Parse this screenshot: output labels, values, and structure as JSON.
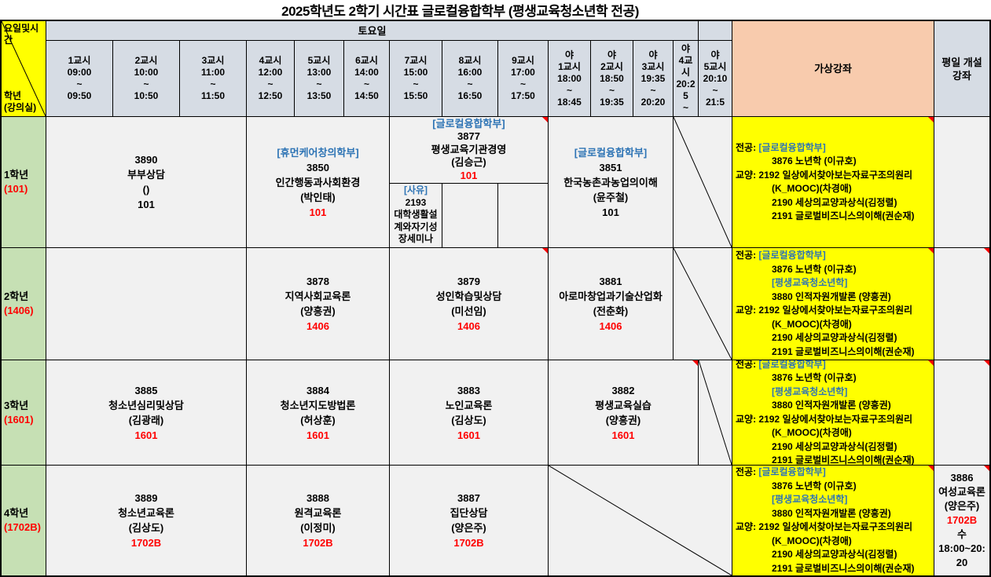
{
  "title": "2025학년도 2학기 시간표 글로컬융합학부 (평생교육청소년학 전공)",
  "colors": {
    "highlight_yellow": "#FFFF00",
    "header_fill": "#D6DCE4",
    "virtual_header_fill": "#F8CBAD",
    "grade_fill": "#C6E0B4",
    "dept_link_blue": "#2E74B5",
    "room_red": "#FF0000"
  },
  "corner": {
    "top_lines": [
      "요일및시간"
    ],
    "bottom_lines": [
      "학년",
      "(강의실)"
    ]
  },
  "header": {
    "day": "토요일",
    "virtual_title": "가상강좌",
    "weekday_title": "평일 개설 강좌",
    "periods": [
      {
        "lines": [
          "1교시",
          "09:00",
          "~",
          "09:50"
        ]
      },
      {
        "lines": [
          "2교시",
          "10:00",
          "~",
          "10:50"
        ]
      },
      {
        "lines": [
          "3교시",
          "11:00",
          "~",
          "11:50"
        ]
      },
      {
        "lines": [
          "4교시",
          "12:00",
          "~",
          "12:50"
        ]
      },
      {
        "lines": [
          "5교시",
          "13:00",
          "~",
          "13:50"
        ]
      },
      {
        "lines": [
          "6교시",
          "14:00",
          "~",
          "14:50"
        ]
      },
      {
        "lines": [
          "7교시",
          "15:00",
          "~",
          "15:50"
        ]
      },
      {
        "lines": [
          "8교시",
          "16:00",
          "~",
          "16:50"
        ]
      },
      {
        "lines": [
          "9교시",
          "17:00",
          "~",
          "17:50"
        ]
      },
      {
        "lines": [
          "야",
          "1교시",
          "18:00",
          "~",
          "18:45"
        ]
      },
      {
        "lines": [
          "야",
          "2교시",
          "18:50",
          "~",
          "19:35"
        ]
      },
      {
        "lines": [
          "야",
          "3교시",
          "19:35",
          "~",
          "20:20"
        ]
      },
      {
        "lines": [
          "야",
          "4교시",
          "20:25",
          "~"
        ]
      },
      {
        "lines": [
          "야",
          "5교시",
          "20:10",
          "~",
          "21:5"
        ]
      }
    ]
  },
  "rows": [
    {
      "grade": {
        "lines": [
          "1학년",
          {
            "t": "(101)",
            "c": "red"
          }
        ]
      },
      "cells": {
        "c123": {
          "lines": [
            "3890",
            "부부상담",
            "()",
            "101"
          ]
        },
        "c456": {
          "lines": [
            {
              "t": "[휴먼케어창의학부]",
              "c": "blue"
            },
            "3850",
            "인간행동과사회환경",
            "(박인태)",
            {
              "t": "101",
              "c": "red"
            }
          ]
        },
        "c789": {
          "note": true,
          "lines": [
            {
              "t": "[글로컬융합학부]",
              "c": "blue"
            },
            "3877",
            "평생교육기관경영",
            "(김승근)",
            {
              "t": "101",
              "c": "red"
            }
          ]
        },
        "c7b": {
          "lines": [
            {
              "t": "[사유]",
              "c": "blue"
            },
            "2193",
            "대학생활설계와자기성장세미나"
          ]
        },
        "n123": {
          "lines": [
            {
              "t": "[글로컬융합학부]",
              "c": "blue"
            },
            "3851",
            "한국농촌과농업의이해",
            "(윤주철)",
            "101"
          ]
        },
        "virtual": {
          "note": true,
          "lines": [
            {
              "segs": [
                {
                  "t": "전공: "
                },
                {
                  "t": "[글로컬융합학부]",
                  "c": "blue"
                }
              ]
            },
            {
              "t": "3876 노년학 (이규호)",
              "cls": "ind"
            },
            {
              "t": "교양: 2192 일상에서찾아보는자료구조의원리"
            },
            {
              "t": "(K_MOOC)(차경애)",
              "cls": "ind"
            },
            {
              "t": "2190 세상의교양과상식(김정렬)",
              "cls": "ind"
            },
            {
              "t": "2191 글로벌비즈니스의이해(권순재)",
              "cls": "ind"
            }
          ]
        },
        "weekday": {
          "lines": []
        }
      }
    },
    {
      "grade": {
        "lines": [
          "2학년",
          {
            "t": "(1406)",
            "c": "red"
          }
        ]
      },
      "cells": {
        "c123": {
          "lines": []
        },
        "c456": {
          "lines": [
            "3878",
            "지역사회교육론",
            "(양흥권)",
            {
              "t": "1406",
              "c": "red"
            }
          ]
        },
        "c789": {
          "note": true,
          "lines": [
            "3879",
            "성인학습및상담",
            "(미선임)",
            {
              "t": "1406",
              "c": "red"
            }
          ]
        },
        "n123": {
          "lines": [
            "3881",
            "아로마창업과기술산업화",
            "(전춘화)",
            {
              "t": "1406",
              "c": "red"
            }
          ]
        },
        "virtual": {
          "note": true,
          "lines": [
            {
              "segs": [
                {
                  "t": "전공: "
                },
                {
                  "t": "[글로컬융합학부]",
                  "c": "blue"
                }
              ]
            },
            {
              "t": "3876 노년학 (이규호)",
              "cls": "ind"
            },
            {
              "t": "[평생교육청소년학]",
              "c": "blue",
              "cls": "ind"
            },
            {
              "t": "3880 인적자원개발론 (양흥권)",
              "cls": "ind"
            },
            {
              "t": "교양: 2192 일상에서찾아보는자료구조의원리"
            },
            {
              "t": "(K_MOOC)(차경애)",
              "cls": "ind"
            },
            {
              "t": "2190 세상의교양과상식(김정렬)",
              "cls": "ind"
            },
            {
              "t": "2191 글로벌비즈니스의이해(권순재)",
              "cls": "ind"
            }
          ]
        },
        "weekday": {
          "note": true,
          "lines": []
        }
      }
    },
    {
      "grade": {
        "lines": [
          "3학년",
          {
            "t": "(1601)",
            "c": "red"
          }
        ]
      },
      "cells": {
        "c123": {
          "lines": [
            "3885",
            "청소년심리및상담",
            "(김광래)",
            {
              "t": "1601",
              "c": "red"
            }
          ]
        },
        "c456": {
          "lines": [
            "3884",
            "청소년지도방법론",
            "(허상훈)",
            {
              "t": "1601",
              "c": "red"
            }
          ]
        },
        "c789": {
          "lines": [
            "3883",
            "노인교육론",
            "(김상도)",
            {
              "t": "1601",
              "c": "red"
            }
          ]
        },
        "n123": {
          "note": true,
          "lines": [
            "3882",
            "평생교육실습",
            "(양흥권)",
            {
              "t": "1601",
              "c": "red"
            }
          ]
        },
        "virtual": {
          "note": true,
          "lines": [
            {
              "segs": [
                {
                  "t": "전공: "
                },
                {
                  "t": "[글로컬융합학부]",
                  "c": "blue"
                }
              ]
            },
            {
              "t": "3876 노년학 (이규호)",
              "cls": "ind"
            },
            {
              "t": "[평생교육청소년학]",
              "c": "blue",
              "cls": "ind"
            },
            {
              "t": "3880 인적자원개발론 (양흥권)",
              "cls": "ind"
            },
            {
              "t": "교양: 2192 일상에서찾아보는자료구조의원리"
            },
            {
              "t": "(K_MOOC)(차경애)",
              "cls": "ind"
            },
            {
              "t": "2190 세상의교양과상식(김정렬)",
              "cls": "ind"
            },
            {
              "t": "2191 글로벌비즈니스의이해(권순재)",
              "cls": "ind"
            }
          ]
        },
        "weekday": {
          "note": true,
          "lines": []
        }
      }
    },
    {
      "grade": {
        "lines": [
          "4학년",
          {
            "t": "(1702B)",
            "c": "red"
          }
        ]
      },
      "cells": {
        "c123": {
          "lines": [
            "3889",
            "청소년교육론",
            "(김상도)",
            {
              "t": "1702B",
              "c": "red"
            }
          ]
        },
        "c456": {
          "lines": [
            "3888",
            "원격교육론",
            "(이정미)",
            {
              "t": "1702B",
              "c": "red"
            }
          ]
        },
        "c789": {
          "lines": [
            "3887",
            "집단상담",
            "(양은주)",
            {
              "t": "1702B",
              "c": "red"
            }
          ]
        },
        "virtual": {
          "note": true,
          "lines": [
            {
              "segs": [
                {
                  "t": "전공: "
                },
                {
                  "t": "[글로컬융합학부]",
                  "c": "blue"
                }
              ]
            },
            {
              "t": "3876 노년학 (이규호)",
              "cls": "ind"
            },
            {
              "t": "[평생교육청소년학]",
              "c": "blue",
              "cls": "ind"
            },
            {
              "t": "3880 인적자원개발론 (양흥권)",
              "cls": "ind"
            },
            {
              "t": "교양: 2192 일상에서찾아보는자료구조의원리"
            },
            {
              "t": "(K_MOOC)(차경애)",
              "cls": "ind"
            },
            {
              "t": "2190 세상의교양과상식(김정렬)",
              "cls": "ind"
            },
            {
              "t": "2191 글로벌비즈니스의이해(권순재)",
              "cls": "ind"
            }
          ]
        },
        "weekday": {
          "note": true,
          "lines": [
            "3886",
            "여성교육론",
            "(양은주)",
            {
              "t": "1702B",
              "c": "red"
            },
            "수",
            "18:00~20:20"
          ]
        }
      }
    }
  ]
}
